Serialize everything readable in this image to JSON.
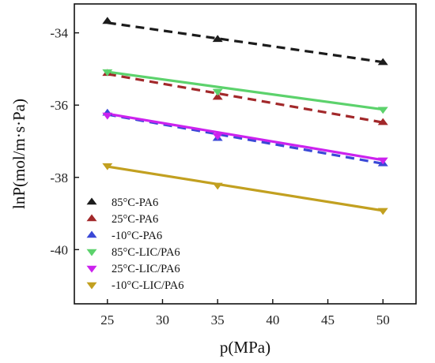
{
  "chart_data": {
    "type": "scatter",
    "xlabel": "p(MPa)",
    "ylabel": "lnP(mol/m·s·Pa)",
    "xlim": [
      22,
      53
    ],
    "ylim": [
      -41.5,
      -33.2
    ],
    "xticks": [
      25,
      30,
      35,
      40,
      45,
      50
    ],
    "yticks": [
      -34,
      -36,
      -38,
      -40
    ],
    "legend_position": "bottom-left",
    "x": [
      25,
      35,
      50
    ],
    "series": [
      {
        "name": "85°C-PA6",
        "marker": "triangle-up",
        "color": "#1c1c1c",
        "values": [
          -33.68,
          -34.18,
          -34.82
        ],
        "fit": [
          -33.72,
          -34.81
        ],
        "fit_style": "dashed"
      },
      {
        "name": "25°C-PA6",
        "marker": "triangle-up",
        "color": "#a2282a",
        "values": [
          -35.12,
          -35.78,
          -36.48
        ],
        "fit": [
          -35.14,
          -36.48
        ],
        "fit_style": "dashed"
      },
      {
        "name": "-10°C-PA6",
        "marker": "triangle-up",
        "color": "#3a48d6",
        "values": [
          -36.22,
          -36.92,
          -37.62
        ],
        "fit": [
          -36.26,
          -37.62
        ],
        "fit_style": "dashed"
      },
      {
        "name": "85°C-LIC/PA6",
        "marker": "triangle-down",
        "color": "#5cd26c",
        "values": [
          -35.08,
          -35.62,
          -36.12
        ],
        "fit": [
          -35.08,
          -36.12
        ],
        "fit_style": "solid"
      },
      {
        "name": "25°C-LIC/PA6",
        "marker": "triangle-down",
        "color": "#cc22ee",
        "values": [
          -36.28,
          -36.85,
          -37.52
        ],
        "fit": [
          -36.24,
          -37.52
        ],
        "fit_style": "solid"
      },
      {
        "name": "-10°C-LIC/PA6",
        "marker": "triangle-down",
        "color": "#c2a020",
        "values": [
          -37.68,
          -38.22,
          -38.92
        ],
        "fit": [
          -37.7,
          -38.92
        ],
        "fit_style": "solid"
      }
    ]
  }
}
